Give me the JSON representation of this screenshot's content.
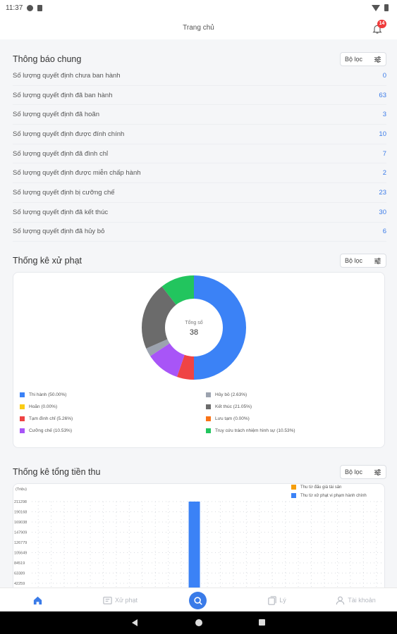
{
  "status_bar": {
    "time": "11:37"
  },
  "app_bar": {
    "title": "Trang chủ",
    "notification_count": "14"
  },
  "general": {
    "title": "Thông báo chung",
    "filter_label": "Bộ lọc",
    "rows": [
      {
        "label": "Số lượng quyết định chưa ban hành",
        "value": "0"
      },
      {
        "label": "Số lượng quyết định đã ban hành",
        "value": "63"
      },
      {
        "label": "Số lượng quyết định đã hoãn",
        "value": "3"
      },
      {
        "label": "Số lượng quyết định được đính chính",
        "value": "10"
      },
      {
        "label": "Số lượng quyết định đã đình chỉ",
        "value": "7"
      },
      {
        "label": "Số lượng quyết định được miễn chấp hành",
        "value": "2"
      },
      {
        "label": "Số lượng quyết định bị cưỡng chế",
        "value": "23"
      },
      {
        "label": "Số lượng quyết định đã kết thúc",
        "value": "30"
      },
      {
        "label": "Số lượng quyết định đã hủy bỏ",
        "value": "6"
      }
    ]
  },
  "penalty_stats": {
    "title": "Thống kê xử phạt",
    "filter_label": "Bộ lọc",
    "center_label": "Tổng số",
    "center_value": "38",
    "legend": [
      {
        "label": "Thi hành (50.00%)",
        "color": "#3b82f6"
      },
      {
        "label": "Hủy bỏ (2.63%)",
        "color": "#9ca3af"
      },
      {
        "label": "Hoãn (0.00%)",
        "color": "#facc15"
      },
      {
        "label": "Kết thúc (21.05%)",
        "color": "#6b6b6b"
      },
      {
        "label": "Tạm đình chỉ (5.26%)",
        "color": "#ef4444"
      },
      {
        "label": "Lưu tạm (0.00%)",
        "color": "#f97316"
      },
      {
        "label": "Cưỡng chế (10.53%)",
        "color": "#a855f7"
      },
      {
        "label": "Truy cứu trách nhiệm hình sự (10.53%)",
        "color": "#22c55e"
      }
    ]
  },
  "revenue_stats": {
    "title": "Thống kê tổng tiền thu",
    "filter_label": "Bộ lọc",
    "unit": "(Triệu)",
    "legend": [
      {
        "label": "Thu từ đấu giá tài sản",
        "color": "#f59e0b"
      },
      {
        "label": "Thu từ xử phạt vi phạm hành chính",
        "color": "#3b82f6"
      }
    ]
  },
  "bottom_nav": {
    "items": [
      {
        "label": ""
      },
      {
        "label": "Xử phạt"
      },
      {
        "label": ""
      },
      {
        "label": "Lý"
      },
      {
        "label": "Tài khoản"
      }
    ]
  },
  "chart_data": [
    {
      "type": "pie",
      "categories": [
        "Thi hành",
        "Tạm đình chỉ",
        "Cưỡng chế",
        "Hủy bỏ",
        "Kết thúc",
        "Truy cứu trách nhiệm hình sự",
        "Hoãn",
        "Lưu tạm"
      ],
      "values": [
        50.0,
        5.26,
        10.53,
        2.63,
        21.05,
        10.53,
        0.0,
        0.0
      ],
      "colors": [
        "#3b82f6",
        "#ef4444",
        "#a855f7",
        "#9ca3af",
        "#6b6b6b",
        "#22c55e",
        "#facc15",
        "#f97316"
      ],
      "title": "",
      "center_text": "Tổng số 38"
    },
    {
      "type": "bar",
      "ylabel": "(Triệu)",
      "y_ticks": [
        "211298",
        "190168",
        "169038",
        "147909",
        "126779",
        "105649",
        "84519",
        "63389",
        "42259"
      ],
      "series": [
        {
          "name": "Thu từ đấu giá tài sản",
          "values": [
            0,
            0,
            0,
            0,
            0,
            0,
            0,
            0,
            0,
            0,
            0,
            0,
            0,
            0,
            0,
            0,
            0,
            0,
            0,
            0,
            0,
            0,
            0,
            0,
            0,
            0,
            0
          ]
        },
        {
          "name": "Thu từ xử phạt vi phạm hành chính",
          "values": [
            0,
            0,
            0,
            0,
            0,
            0,
            0,
            0,
            0,
            0,
            0,
            0,
            211298,
            0,
            0,
            0,
            0,
            0,
            0,
            0,
            0,
            0,
            0,
            0,
            0,
            0,
            0
          ]
        }
      ],
      "legend_position": "top-right",
      "grid": true
    }
  ]
}
